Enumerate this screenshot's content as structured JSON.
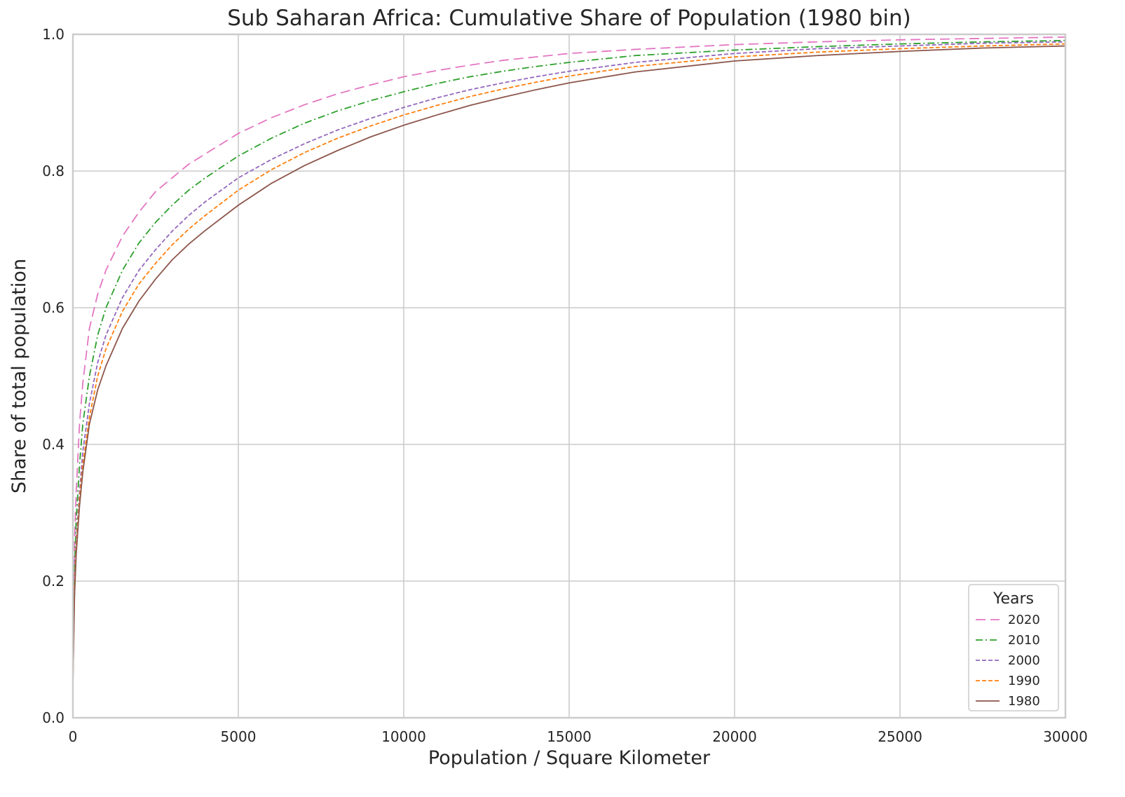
{
  "chart_data": {
    "type": "line",
    "title": "Sub Saharan Africa: Cumulative Share of Population (1980 bin)",
    "xlabel": "Population / Square Kilometer",
    "ylabel": "Share of total population",
    "xlim": [
      0,
      30000
    ],
    "ylim": [
      0,
      1.0
    ],
    "xticks": [
      0,
      5000,
      10000,
      15000,
      20000,
      25000,
      30000
    ],
    "xtick_labels": [
      "0",
      "5000",
      "10000",
      "15000",
      "20000",
      "25000",
      "30000"
    ],
    "yticks": [
      0,
      0.2,
      0.4,
      0.6,
      0.8,
      1.0
    ],
    "ytick_labels": [
      "0.0",
      "0.2",
      "0.4",
      "0.6",
      "0.8",
      "1.0"
    ],
    "grid": true,
    "legend": {
      "title": "Years",
      "placement": "lower-right"
    },
    "series": [
      {
        "name": "2020",
        "color": "#e377c2",
        "dash": "long-dash",
        "x": [
          0,
          50,
          100,
          200,
          300,
          500,
          750,
          1000,
          1500,
          2000,
          2500,
          3000,
          3500,
          4000,
          5000,
          6000,
          7000,
          8000,
          9000,
          10000,
          11000,
          12000,
          13000,
          14000,
          15000,
          17000,
          20000,
          22500,
          25000,
          27500,
          30000
        ],
        "y": [
          0.05,
          0.26,
          0.33,
          0.43,
          0.49,
          0.57,
          0.62,
          0.655,
          0.705,
          0.74,
          0.77,
          0.79,
          0.81,
          0.825,
          0.855,
          0.878,
          0.897,
          0.913,
          0.926,
          0.938,
          0.947,
          0.955,
          0.962,
          0.967,
          0.972,
          0.978,
          0.985,
          0.989,
          0.992,
          0.994,
          0.996
        ]
      },
      {
        "name": "2010",
        "color": "#2ca02c",
        "dash": "dash-dot",
        "x": [
          0,
          50,
          100,
          200,
          300,
          500,
          750,
          1000,
          1500,
          2000,
          2500,
          3000,
          3500,
          4000,
          5000,
          6000,
          7000,
          8000,
          9000,
          10000,
          11000,
          12000,
          13000,
          14000,
          15000,
          17000,
          20000,
          22500,
          25000,
          27500,
          30000
        ],
        "y": [
          0.05,
          0.22,
          0.29,
          0.37,
          0.43,
          0.5,
          0.56,
          0.6,
          0.655,
          0.695,
          0.725,
          0.75,
          0.772,
          0.79,
          0.822,
          0.848,
          0.87,
          0.888,
          0.903,
          0.916,
          0.928,
          0.938,
          0.946,
          0.953,
          0.959,
          0.969,
          0.977,
          0.982,
          0.986,
          0.989,
          0.991
        ]
      },
      {
        "name": "2000",
        "color": "#9467bd",
        "dash": "short-dash",
        "x": [
          0,
          50,
          100,
          200,
          300,
          500,
          750,
          1000,
          1500,
          2000,
          2500,
          3000,
          3500,
          4000,
          5000,
          6000,
          7000,
          8000,
          9000,
          10000,
          11000,
          12000,
          13000,
          14000,
          15000,
          17000,
          20000,
          22500,
          25000,
          27500,
          30000
        ],
        "y": [
          0.05,
          0.2,
          0.26,
          0.33,
          0.39,
          0.46,
          0.52,
          0.56,
          0.615,
          0.655,
          0.685,
          0.712,
          0.735,
          0.755,
          0.79,
          0.817,
          0.84,
          0.86,
          0.877,
          0.893,
          0.907,
          0.919,
          0.929,
          0.938,
          0.946,
          0.959,
          0.972,
          0.979,
          0.983,
          0.987,
          0.989
        ]
      },
      {
        "name": "1990",
        "color": "#ff7f0e",
        "dash": "short-dash",
        "x": [
          0,
          50,
          100,
          200,
          300,
          500,
          750,
          1000,
          1500,
          2000,
          2500,
          3000,
          3500,
          4000,
          5000,
          6000,
          7000,
          8000,
          9000,
          10000,
          11000,
          12000,
          13000,
          14000,
          15000,
          17000,
          20000,
          22500,
          25000,
          27500,
          30000
        ],
        "y": [
          0.05,
          0.19,
          0.25,
          0.32,
          0.37,
          0.44,
          0.5,
          0.54,
          0.595,
          0.635,
          0.665,
          0.692,
          0.715,
          0.735,
          0.772,
          0.802,
          0.827,
          0.848,
          0.866,
          0.882,
          0.896,
          0.909,
          0.92,
          0.93,
          0.939,
          0.953,
          0.967,
          0.974,
          0.979,
          0.983,
          0.986
        ]
      },
      {
        "name": "1980",
        "color": "#8c564b",
        "dash": "solid",
        "x": [
          0,
          50,
          100,
          200,
          300,
          500,
          750,
          1000,
          1500,
          2000,
          2500,
          3000,
          3500,
          4000,
          5000,
          6000,
          7000,
          8000,
          9000,
          10000,
          11000,
          12000,
          13000,
          14000,
          15000,
          17000,
          20000,
          22500,
          25000,
          27500,
          30000
        ],
        "y": [
          0.05,
          0.18,
          0.24,
          0.31,
          0.36,
          0.43,
          0.48,
          0.515,
          0.57,
          0.61,
          0.642,
          0.67,
          0.693,
          0.713,
          0.75,
          0.782,
          0.808,
          0.83,
          0.85,
          0.867,
          0.882,
          0.896,
          0.908,
          0.919,
          0.929,
          0.945,
          0.961,
          0.969,
          0.975,
          0.98,
          0.983
        ]
      }
    ]
  }
}
